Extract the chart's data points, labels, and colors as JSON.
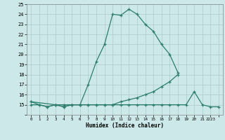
{
  "xlabel": "Humidex (Indice chaleur)",
  "line_color": "#2d7d6e",
  "background_color": "#cce8e8",
  "grid_color": "#aacccc",
  "ylim": [
    14,
    25
  ],
  "xlim": [
    -0.5,
    23.5
  ],
  "series1_x": [
    0,
    1,
    2,
    3,
    4,
    5,
    6,
    7,
    8,
    9,
    10,
    11,
    12,
    13,
    14,
    15,
    16,
    17,
    18
  ],
  "series1_y": [
    15.3,
    15.0,
    14.8,
    15.0,
    14.8,
    15.0,
    15.0,
    17.0,
    19.3,
    21.0,
    24.0,
    23.9,
    24.5,
    24.0,
    23.0,
    22.3,
    21.0,
    20.0,
    18.2
  ],
  "series2_x": [
    0,
    3,
    4,
    5,
    6,
    7,
    8,
    9,
    10,
    11,
    12,
    13,
    14,
    15,
    16,
    17,
    18
  ],
  "series2_y": [
    15.3,
    15.0,
    15.0,
    15.0,
    15.0,
    15.0,
    15.0,
    15.0,
    15.0,
    15.3,
    15.5,
    15.7,
    16.0,
    16.3,
    16.8,
    17.3,
    18.0
  ],
  "series3_x": [
    0,
    1,
    2,
    3,
    4,
    5,
    6,
    7,
    8,
    9,
    10,
    11,
    12,
    13,
    14,
    15,
    16,
    17,
    18,
    19,
    20,
    21,
    22,
    23
  ],
  "series3_y": [
    15.0,
    15.0,
    14.8,
    15.0,
    14.8,
    15.0,
    15.0,
    15.0,
    15.0,
    15.0,
    15.0,
    15.0,
    15.0,
    15.0,
    15.0,
    15.0,
    15.0,
    15.0,
    15.0,
    15.0,
    16.3,
    15.0,
    14.8,
    14.8
  ],
  "ytick_labels": [
    "",
    "15",
    "16",
    "17",
    "18",
    "19",
    "20",
    "21",
    "22",
    "23",
    "24",
    ""
  ],
  "xtick_labels": [
    "0",
    "1",
    "2",
    "3",
    "4",
    "5",
    "6",
    "7",
    "8",
    "9",
    "10",
    "11",
    "12",
    "13",
    "14",
    "15",
    "16",
    "17",
    "18",
    "19",
    "20",
    "21",
    "2223"
  ]
}
